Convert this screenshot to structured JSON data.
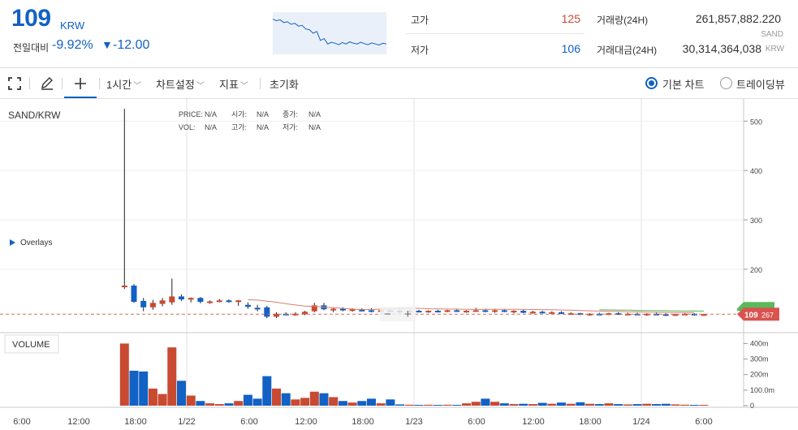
{
  "ticker": {
    "price": "109",
    "currency": "KRW",
    "change_label": "전일대비",
    "change_rate": "-9.92%",
    "change_arrow": "▼",
    "change_amount": "-12.00",
    "high_label": "고가",
    "high_value": "125",
    "low_label": "저가",
    "low_value": "106",
    "volume_label": "거래량(24H)",
    "volume_value": "261,857,882.220",
    "volume_unit": "SAND",
    "value_label": "거래대금(24H)",
    "value_value": "30,314,364,038",
    "value_unit": "KRW",
    "sparkline": [
      0.9,
      0.85,
      0.88,
      0.8,
      0.82,
      0.75,
      0.78,
      0.7,
      0.72,
      0.62,
      0.6,
      0.5,
      0.55,
      0.3,
      0.35,
      0.2,
      0.25,
      0.22,
      0.18,
      0.24,
      0.2,
      0.26,
      0.22,
      0.2,
      0.25,
      0.21,
      0.18,
      0.23,
      0.2,
      0.17,
      0.22,
      0.2
    ]
  },
  "toolbar": {
    "interval": "1시간",
    "chart_settings": "차트설정",
    "indicators": "지표",
    "reset": "초기화",
    "basic_chart": "기본 차트",
    "tradingview": "트레이딩뷰"
  },
  "colors": {
    "up": "#c84a31",
    "down": "#1261c4",
    "ma1": "#d97f6e",
    "ma2": "#6cc36c",
    "accent": "#1261c4"
  },
  "chart": {
    "symbol": "SAND/KRW",
    "overlays": "Overlays",
    "info": [
      [
        "PRICE:",
        "N/A",
        "시가:",
        "N/A",
        "종가:",
        "N/A"
      ],
      [
        "VOL:",
        "N/A",
        "고가:",
        "N/A",
        "저가:",
        "N/A"
      ]
    ],
    "price_ticks": [
      "500",
      "400",
      "300",
      "200"
    ],
    "volume_label": "VOLUME",
    "volume_ticks": [
      "400m",
      "300m",
      "200m",
      "100.0m",
      "0"
    ],
    "time_ticks": [
      "6:00",
      "12:00",
      "18:00",
      "1/22",
      "6:00",
      "12:00",
      "18:00",
      "1/23",
      "6:00",
      "12:00",
      "18:00",
      "1/24",
      "6:00"
    ],
    "last_price": "109",
    "countdown": "267",
    "zoom_out": "−",
    "zoom_in": "+"
  },
  "chart_data": {
    "type": "candlestick",
    "price_range": [
      75,
      535
    ],
    "volume_range": [
      0,
      470
    ],
    "first_candle_index": 9,
    "x_labels": [
      "6:00",
      "12:00",
      "18:00",
      "1/22",
      "6:00",
      "12:00",
      "18:00",
      "1/23",
      "6:00",
      "12:00",
      "18:00",
      "1/24",
      "6:00"
    ],
    "candles": [
      {
        "o": 165,
        "h": 525,
        "l": 160,
        "c": 167,
        "v": 400
      },
      {
        "o": 167,
        "h": 170,
        "l": 132,
        "c": 134,
        "v": 225
      },
      {
        "o": 136,
        "h": 142,
        "l": 115,
        "c": 123,
        "v": 220
      },
      {
        "o": 123,
        "h": 138,
        "l": 118,
        "c": 132,
        "v": 110
      },
      {
        "o": 130,
        "h": 142,
        "l": 125,
        "c": 137,
        "v": 75
      },
      {
        "o": 133,
        "h": 181,
        "l": 128,
        "c": 145,
        "v": 375
      },
      {
        "o": 145,
        "h": 149,
        "l": 136,
        "c": 139,
        "v": 160
      },
      {
        "o": 139,
        "h": 143,
        "l": 133,
        "c": 142,
        "v": 65
      },
      {
        "o": 142,
        "h": 144,
        "l": 131,
        "c": 134,
        "v": 30
      },
      {
        "o": 133,
        "h": 137,
        "l": 130,
        "c": 135,
        "v": 15
      },
      {
        "o": 135,
        "h": 140,
        "l": 133,
        "c": 137,
        "v": 10
      },
      {
        "o": 137,
        "h": 139,
        "l": 132,
        "c": 134,
        "v": 15
      },
      {
        "o": 134,
        "h": 138,
        "l": 126,
        "c": 137,
        "v": 30
      },
      {
        "o": 128,
        "h": 133,
        "l": 120,
        "c": 124,
        "v": 70
      },
      {
        "o": 122,
        "h": 128,
        "l": 115,
        "c": 119,
        "v": 45
      },
      {
        "o": 123,
        "h": 126,
        "l": 101,
        "c": 104,
        "v": 190
      },
      {
        "o": 104,
        "h": 113,
        "l": 101,
        "c": 110,
        "v": 110
      },
      {
        "o": 110,
        "h": 113,
        "l": 107,
        "c": 108,
        "v": 80
      },
      {
        "o": 108,
        "h": 113,
        "l": 106,
        "c": 110,
        "v": 40
      },
      {
        "o": 109,
        "h": 116,
        "l": 107,
        "c": 114,
        "v": 50
      },
      {
        "o": 115,
        "h": 132,
        "l": 113,
        "c": 127,
        "v": 90
      },
      {
        "o": 127,
        "h": 132,
        "l": 117,
        "c": 119,
        "v": 80
      },
      {
        "o": 118,
        "h": 122,
        "l": 113,
        "c": 120,
        "v": 55
      },
      {
        "o": 120,
        "h": 123,
        "l": 115,
        "c": 118,
        "v": 30
      },
      {
        "o": 118,
        "h": 121,
        "l": 114,
        "c": 119,
        "v": 20
      },
      {
        "o": 118,
        "h": 121,
        "l": 115,
        "c": 117,
        "v": 30
      },
      {
        "o": 117,
        "h": 121,
        "l": 113,
        "c": 116,
        "v": 45
      },
      {
        "o": 115,
        "h": 119,
        "l": 113,
        "c": 117,
        "v": 15
      },
      {
        "o": 117,
        "h": 121,
        "l": 114,
        "c": 116,
        "v": 40
      },
      {
        "o": 116,
        "h": 119,
        "l": 112,
        "c": 114,
        "v": 8
      },
      {
        "o": 114,
        "h": 118,
        "l": 112,
        "c": 116,
        "v": 6
      },
      {
        "o": 116,
        "h": 118,
        "l": 113,
        "c": 114,
        "v": 5
      },
      {
        "o": 114,
        "h": 117,
        "l": 112,
        "c": 116,
        "v": 6
      },
      {
        "o": 116,
        "h": 118,
        "l": 113,
        "c": 115,
        "v": 4
      },
      {
        "o": 115,
        "h": 118,
        "l": 113,
        "c": 117,
        "v": 6
      },
      {
        "o": 117,
        "h": 119,
        "l": 114,
        "c": 115,
        "v": 5
      },
      {
        "o": 115,
        "h": 117,
        "l": 112,
        "c": 116,
        "v": 15
      },
      {
        "o": 116,
        "h": 122,
        "l": 114,
        "c": 117,
        "v": 25
      },
      {
        "o": 117,
        "h": 120,
        "l": 113,
        "c": 115,
        "v": 45
      },
      {
        "o": 115,
        "h": 120,
        "l": 112,
        "c": 117,
        "v": 25
      },
      {
        "o": 117,
        "h": 119,
        "l": 113,
        "c": 114,
        "v": 15
      },
      {
        "o": 114,
        "h": 117,
        "l": 111,
        "c": 116,
        "v": 10
      },
      {
        "o": 116,
        "h": 118,
        "l": 111,
        "c": 112,
        "v": 12
      },
      {
        "o": 112,
        "h": 116,
        "l": 110,
        "c": 114,
        "v": 10
      },
      {
        "o": 114,
        "h": 116,
        "l": 111,
        "c": 112,
        "v": 18
      },
      {
        "o": 112,
        "h": 115,
        "l": 110,
        "c": 113,
        "v": 12
      },
      {
        "o": 113,
        "h": 115,
        "l": 109,
        "c": 110,
        "v": 20
      },
      {
        "o": 110,
        "h": 113,
        "l": 108,
        "c": 111,
        "v": 12
      },
      {
        "o": 111,
        "h": 112,
        "l": 107,
        "c": 108,
        "v": 22
      },
      {
        "o": 108,
        "h": 111,
        "l": 106,
        "c": 110,
        "v": 12
      },
      {
        "o": 110,
        "h": 112,
        "l": 107,
        "c": 109,
        "v": 10
      },
      {
        "o": 109,
        "h": 112,
        "l": 107,
        "c": 111,
        "v": 15
      },
      {
        "o": 111,
        "h": 113,
        "l": 108,
        "c": 109,
        "v": 10
      },
      {
        "o": 109,
        "h": 112,
        "l": 107,
        "c": 110,
        "v": 8
      },
      {
        "o": 110,
        "h": 112,
        "l": 107,
        "c": 108,
        "v": 10
      },
      {
        "o": 108,
        "h": 111,
        "l": 106,
        "c": 110,
        "v": 12
      },
      {
        "o": 110,
        "h": 112,
        "l": 107,
        "c": 109,
        "v": 10
      },
      {
        "o": 109,
        "h": 111,
        "l": 107,
        "c": 108,
        "v": 12
      },
      {
        "o": 108,
        "h": 110,
        "l": 106,
        "c": 109,
        "v": 8
      },
      {
        "o": 109,
        "h": 111,
        "l": 107,
        "c": 110,
        "v": 6
      },
      {
        "o": 110,
        "h": 111,
        "l": 106,
        "c": 107,
        "v": 5
      },
      {
        "o": 107,
        "h": 110,
        "l": 106,
        "c": 109,
        "v": 4
      }
    ]
  }
}
